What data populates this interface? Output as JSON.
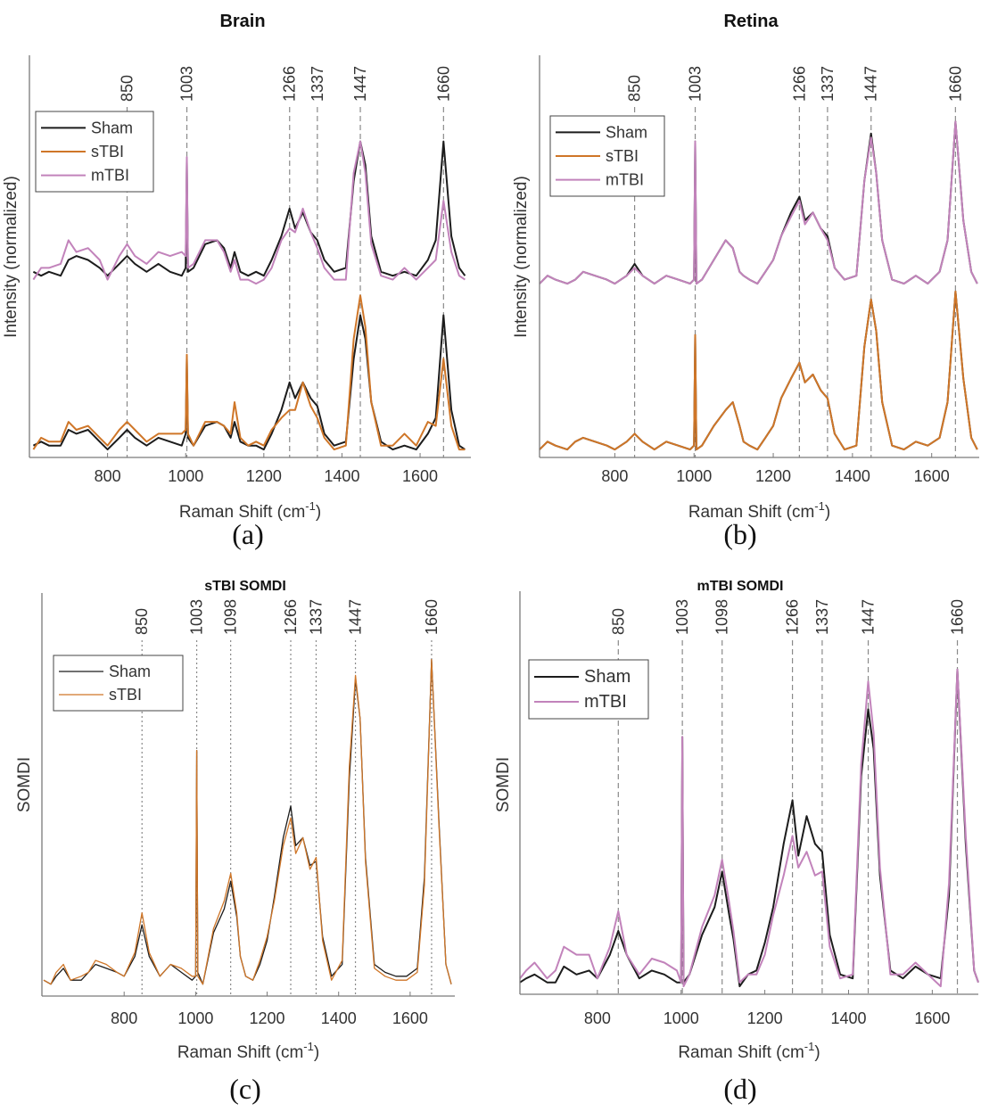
{
  "colors": {
    "Sham": "#1c1c1c",
    "sTBI": "#cf7628",
    "mTBI": "#c283bb",
    "refline": "#8a8a8a",
    "axis": "#7a7a7a"
  },
  "chart_data": [
    {
      "type": "line",
      "panel": "(a)",
      "title": "Brain",
      "xlabel": "Raman Shift (cm",
      "xlabel_sup": "-1",
      "xlabel_end": ")",
      "ylabel": "Intensity (normalized)",
      "xlim": [
        600,
        1730
      ],
      "ylim": [
        0,
        1
      ],
      "xticks": [
        800,
        1000,
        1200,
        1400,
        1600
      ],
      "grid": false,
      "legend": {
        "placement": "top-left",
        "entries": [
          "Sham",
          "sTBI",
          "mTBI"
        ]
      },
      "reference_lines": [
        850,
        1003,
        1266,
        1337,
        1447,
        1660
      ],
      "x": [
        610,
        630,
        650,
        680,
        700,
        720,
        750,
        780,
        800,
        830,
        850,
        870,
        900,
        930,
        960,
        990,
        1000,
        1003,
        1006,
        1020,
        1050,
        1080,
        1098,
        1115,
        1125,
        1140,
        1160,
        1180,
        1200,
        1220,
        1245,
        1266,
        1280,
        1300,
        1320,
        1337,
        1355,
        1380,
        1410,
        1430,
        1447,
        1460,
        1475,
        1500,
        1530,
        1560,
        1590,
        1620,
        1640,
        1660,
        1680,
        1700,
        1715
      ],
      "series": [
        {
          "name": "Sham",
          "color_key": "Sham",
          "values": [
            0.47,
            0.46,
            0.47,
            0.46,
            0.5,
            0.51,
            0.5,
            0.48,
            0.46,
            0.49,
            0.51,
            0.49,
            0.47,
            0.49,
            0.47,
            0.46,
            0.48,
            0.75,
            0.47,
            0.48,
            0.54,
            0.55,
            0.53,
            0.48,
            0.52,
            0.47,
            0.46,
            0.47,
            0.46,
            0.5,
            0.56,
            0.63,
            0.58,
            0.62,
            0.57,
            0.55,
            0.5,
            0.47,
            0.48,
            0.7,
            0.8,
            0.74,
            0.56,
            0.47,
            0.46,
            0.47,
            0.46,
            0.5,
            0.55,
            0.8,
            0.56,
            0.48,
            0.46
          ]
        },
        {
          "name": "mTBI",
          "color_key": "mTBI",
          "values": [
            0.45,
            0.48,
            0.48,
            0.49,
            0.55,
            0.52,
            0.53,
            0.5,
            0.45,
            0.51,
            0.54,
            0.51,
            0.49,
            0.52,
            0.51,
            0.52,
            0.51,
            0.76,
            0.48,
            0.49,
            0.55,
            0.55,
            0.52,
            0.47,
            0.5,
            0.45,
            0.45,
            0.44,
            0.45,
            0.48,
            0.55,
            0.58,
            0.57,
            0.63,
            0.57,
            0.53,
            0.48,
            0.45,
            0.45,
            0.72,
            0.8,
            0.72,
            0.54,
            0.46,
            0.45,
            0.48,
            0.45,
            0.48,
            0.5,
            0.65,
            0.52,
            0.46,
            0.45
          ]
        },
        {
          "name": "Sham",
          "color_key": "Sham",
          "values": [
            0.03,
            0.04,
            0.03,
            0.03,
            0.07,
            0.06,
            0.07,
            0.04,
            0.02,
            0.05,
            0.07,
            0.05,
            0.03,
            0.05,
            0.04,
            0.03,
            0.06,
            0.25,
            0.05,
            0.03,
            0.08,
            0.09,
            0.08,
            0.05,
            0.09,
            0.04,
            0.03,
            0.03,
            0.02,
            0.06,
            0.12,
            0.19,
            0.15,
            0.19,
            0.15,
            0.13,
            0.06,
            0.03,
            0.04,
            0.25,
            0.36,
            0.3,
            0.14,
            0.04,
            0.02,
            0.03,
            0.02,
            0.06,
            0.1,
            0.36,
            0.12,
            0.03,
            0.02
          ]
        },
        {
          "name": "sTBI",
          "color_key": "sTBI",
          "values": [
            0.02,
            0.05,
            0.04,
            0.04,
            0.09,
            0.07,
            0.08,
            0.05,
            0.03,
            0.07,
            0.09,
            0.07,
            0.04,
            0.06,
            0.06,
            0.06,
            0.07,
            0.26,
            0.06,
            0.03,
            0.09,
            0.09,
            0.08,
            0.06,
            0.14,
            0.05,
            0.03,
            0.04,
            0.03,
            0.07,
            0.1,
            0.12,
            0.12,
            0.19,
            0.13,
            0.1,
            0.05,
            0.02,
            0.03,
            0.3,
            0.41,
            0.33,
            0.14,
            0.03,
            0.03,
            0.06,
            0.03,
            0.09,
            0.08,
            0.25,
            0.08,
            0.02,
            0.02
          ]
        }
      ]
    },
    {
      "type": "line",
      "panel": "(b)",
      "title": "Retina",
      "xlabel": "Raman Shift (cm",
      "xlabel_sup": "-1",
      "xlabel_end": ")",
      "ylabel": "Intensity (normalized)",
      "xlim": [
        610,
        1720
      ],
      "ylim": [
        0,
        1
      ],
      "xticks": [
        800,
        1000,
        1200,
        1400,
        1600
      ],
      "grid": false,
      "legend": {
        "placement": "top-left",
        "entries": [
          "Sham",
          "sTBI",
          "mTBI"
        ]
      },
      "reference_lines": [
        850,
        1003,
        1266,
        1337,
        1447,
        1660
      ],
      "x": [
        610,
        630,
        650,
        680,
        700,
        720,
        750,
        780,
        800,
        830,
        850,
        870,
        900,
        930,
        960,
        990,
        1000,
        1003,
        1006,
        1020,
        1050,
        1080,
        1098,
        1115,
        1125,
        1140,
        1160,
        1180,
        1200,
        1220,
        1245,
        1266,
        1280,
        1300,
        1320,
        1337,
        1355,
        1380,
        1410,
        1430,
        1447,
        1460,
        1475,
        1500,
        1530,
        1560,
        1590,
        1620,
        1640,
        1660,
        1680,
        1700,
        1715
      ],
      "series": [
        {
          "name": "Sham",
          "color_key": "Sham",
          "values": [
            0.44,
            0.46,
            0.45,
            0.44,
            0.45,
            0.47,
            0.46,
            0.45,
            0.44,
            0.46,
            0.49,
            0.46,
            0.44,
            0.46,
            0.45,
            0.44,
            0.45,
            0.8,
            0.44,
            0.45,
            0.5,
            0.55,
            0.53,
            0.47,
            0.46,
            0.45,
            0.44,
            0.47,
            0.5,
            0.56,
            0.62,
            0.66,
            0.6,
            0.62,
            0.58,
            0.56,
            0.48,
            0.45,
            0.46,
            0.7,
            0.82,
            0.72,
            0.55,
            0.45,
            0.44,
            0.46,
            0.44,
            0.47,
            0.55,
            0.85,
            0.6,
            0.47,
            0.44
          ]
        },
        {
          "name": "mTBI",
          "color_key": "mTBI",
          "values": [
            0.44,
            0.46,
            0.45,
            0.44,
            0.45,
            0.47,
            0.46,
            0.45,
            0.44,
            0.46,
            0.48,
            0.46,
            0.44,
            0.46,
            0.45,
            0.44,
            0.45,
            0.8,
            0.44,
            0.45,
            0.5,
            0.55,
            0.53,
            0.47,
            0.46,
            0.45,
            0.44,
            0.47,
            0.5,
            0.56,
            0.61,
            0.65,
            0.59,
            0.62,
            0.58,
            0.55,
            0.48,
            0.45,
            0.46,
            0.7,
            0.81,
            0.72,
            0.55,
            0.45,
            0.44,
            0.46,
            0.44,
            0.47,
            0.55,
            0.85,
            0.6,
            0.47,
            0.44
          ]
        },
        {
          "name": "Sham",
          "color_key": "Sham",
          "values": [
            0.02,
            0.04,
            0.03,
            0.02,
            0.04,
            0.05,
            0.04,
            0.03,
            0.02,
            0.04,
            0.06,
            0.04,
            0.02,
            0.04,
            0.03,
            0.02,
            0.03,
            0.31,
            0.02,
            0.03,
            0.08,
            0.12,
            0.14,
            0.08,
            0.04,
            0.03,
            0.02,
            0.05,
            0.08,
            0.15,
            0.2,
            0.24,
            0.19,
            0.21,
            0.17,
            0.15,
            0.06,
            0.02,
            0.03,
            0.28,
            0.4,
            0.32,
            0.14,
            0.03,
            0.02,
            0.04,
            0.03,
            0.05,
            0.14,
            0.42,
            0.2,
            0.05,
            0.02
          ]
        },
        {
          "name": "sTBI",
          "color_key": "sTBI",
          "values": [
            0.02,
            0.04,
            0.03,
            0.02,
            0.04,
            0.05,
            0.04,
            0.03,
            0.02,
            0.04,
            0.06,
            0.04,
            0.02,
            0.04,
            0.03,
            0.02,
            0.03,
            0.31,
            0.02,
            0.03,
            0.08,
            0.12,
            0.14,
            0.08,
            0.04,
            0.03,
            0.02,
            0.05,
            0.08,
            0.15,
            0.2,
            0.24,
            0.19,
            0.21,
            0.17,
            0.15,
            0.06,
            0.02,
            0.03,
            0.28,
            0.4,
            0.32,
            0.14,
            0.03,
            0.02,
            0.04,
            0.03,
            0.05,
            0.14,
            0.42,
            0.2,
            0.05,
            0.02
          ]
        }
      ]
    },
    {
      "type": "line",
      "panel": "(c)",
      "title": "sTBI SOMDI",
      "xlabel": "Raman Shift (cm",
      "xlabel_sup": "-1",
      "xlabel_end": ")",
      "ylabel": "SOMDI",
      "xlim": [
        570,
        1725
      ],
      "ylim": [
        0,
        1
      ],
      "xticks": [
        800,
        1000,
        1200,
        1400,
        1600
      ],
      "grid": false,
      "legend": {
        "placement": "top-left",
        "entries": [
          "Sham",
          "sTBI"
        ]
      },
      "reference_lines": [
        850,
        1003,
        1098,
        1266,
        1337,
        1447,
        1660
      ],
      "x": [
        575,
        595,
        610,
        630,
        650,
        680,
        700,
        720,
        750,
        780,
        800,
        830,
        850,
        870,
        900,
        930,
        960,
        990,
        1000,
        1003,
        1006,
        1020,
        1050,
        1080,
        1098,
        1115,
        1125,
        1140,
        1160,
        1180,
        1200,
        1220,
        1245,
        1266,
        1280,
        1300,
        1320,
        1337,
        1355,
        1380,
        1410,
        1430,
        1447,
        1460,
        1475,
        1500,
        1530,
        1560,
        1590,
        1620,
        1640,
        1660,
        1680,
        1700,
        1715
      ],
      "series": [
        {
          "name": "Sham",
          "color_key": "Sham",
          "values": [
            0.04,
            0.03,
            0.05,
            0.07,
            0.04,
            0.04,
            0.06,
            0.08,
            0.07,
            0.06,
            0.05,
            0.1,
            0.18,
            0.1,
            0.05,
            0.08,
            0.06,
            0.04,
            0.05,
            0.62,
            0.06,
            0.03,
            0.16,
            0.22,
            0.29,
            0.2,
            0.1,
            0.05,
            0.04,
            0.08,
            0.14,
            0.25,
            0.4,
            0.48,
            0.38,
            0.4,
            0.33,
            0.34,
            0.15,
            0.05,
            0.08,
            0.55,
            0.8,
            0.7,
            0.35,
            0.08,
            0.06,
            0.05,
            0.05,
            0.07,
            0.3,
            0.85,
            0.45,
            0.08,
            0.03
          ]
        },
        {
          "name": "sTBI",
          "color_key": "sTBI",
          "values": [
            0.04,
            0.03,
            0.06,
            0.08,
            0.04,
            0.05,
            0.06,
            0.09,
            0.08,
            0.06,
            0.05,
            0.11,
            0.21,
            0.11,
            0.05,
            0.08,
            0.07,
            0.05,
            0.05,
            0.62,
            0.05,
            0.03,
            0.17,
            0.24,
            0.31,
            0.21,
            0.1,
            0.05,
            0.04,
            0.09,
            0.15,
            0.24,
            0.38,
            0.45,
            0.36,
            0.4,
            0.32,
            0.35,
            0.14,
            0.04,
            0.09,
            0.58,
            0.81,
            0.7,
            0.34,
            0.07,
            0.05,
            0.04,
            0.04,
            0.06,
            0.28,
            0.85,
            0.44,
            0.08,
            0.03
          ]
        }
      ]
    },
    {
      "type": "line",
      "panel": "(d)",
      "title": "mTBI SOMDI",
      "xlabel": "Raman Shift (cm",
      "xlabel_sup": "-1",
      "xlabel_end": ")",
      "ylabel": "SOMDI",
      "xlim": [
        615,
        1710
      ],
      "ylim": [
        0,
        1
      ],
      "xticks": [
        800,
        1000,
        1200,
        1400,
        1600
      ],
      "grid": false,
      "legend": {
        "placement": "top-left",
        "entries": [
          "Sham",
          "mTBI"
        ]
      },
      "reference_lines": [
        850,
        1003,
        1098,
        1266,
        1337,
        1447,
        1660
      ],
      "x": [
        615,
        630,
        650,
        680,
        700,
        720,
        750,
        780,
        800,
        830,
        850,
        870,
        900,
        930,
        960,
        990,
        1000,
        1003,
        1006,
        1020,
        1050,
        1080,
        1098,
        1115,
        1125,
        1140,
        1160,
        1180,
        1200,
        1220,
        1245,
        1266,
        1280,
        1300,
        1320,
        1337,
        1355,
        1380,
        1410,
        1430,
        1447,
        1460,
        1475,
        1500,
        1530,
        1560,
        1590,
        1620,
        1640,
        1660,
        1680,
        1700,
        1710
      ],
      "series": [
        {
          "name": "Sham",
          "color_key": "Sham",
          "values": [
            0.03,
            0.04,
            0.05,
            0.03,
            0.03,
            0.07,
            0.05,
            0.06,
            0.04,
            0.1,
            0.16,
            0.1,
            0.04,
            0.06,
            0.05,
            0.03,
            0.03,
            0.65,
            0.03,
            0.05,
            0.15,
            0.22,
            0.31,
            0.2,
            0.14,
            0.02,
            0.05,
            0.06,
            0.13,
            0.22,
            0.38,
            0.49,
            0.35,
            0.45,
            0.38,
            0.36,
            0.15,
            0.05,
            0.04,
            0.55,
            0.72,
            0.62,
            0.3,
            0.06,
            0.04,
            0.07,
            0.05,
            0.04,
            0.25,
            0.82,
            0.38,
            0.06,
            0.03
          ]
        },
        {
          "name": "mTBI",
          "color_key": "mTBI",
          "values": [
            0.04,
            0.06,
            0.08,
            0.04,
            0.06,
            0.12,
            0.1,
            0.1,
            0.04,
            0.12,
            0.21,
            0.1,
            0.05,
            0.09,
            0.08,
            0.06,
            0.03,
            0.65,
            0.02,
            0.05,
            0.17,
            0.25,
            0.34,
            0.23,
            0.16,
            0.03,
            0.05,
            0.05,
            0.1,
            0.2,
            0.3,
            0.4,
            0.32,
            0.36,
            0.3,
            0.31,
            0.12,
            0.04,
            0.05,
            0.58,
            0.79,
            0.66,
            0.32,
            0.05,
            0.05,
            0.08,
            0.05,
            0.02,
            0.28,
            0.82,
            0.4,
            0.06,
            0.03
          ]
        }
      ]
    }
  ]
}
